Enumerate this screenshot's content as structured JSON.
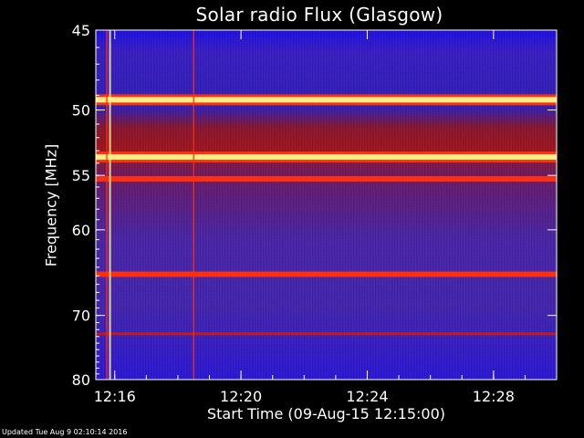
{
  "chart_data": {
    "type": "heatmap",
    "title": "Solar radio Flux (Glasgow)",
    "xlabel": "Start Time (09-Aug-15 12:15:00)",
    "ylabel": "Frequency [MHz]",
    "x_tick_labels": [
      "12:16",
      "12:20",
      "12:24",
      "12:28"
    ],
    "x_ticks_minutes": [
      16,
      20,
      24,
      28
    ],
    "x_range_minutes": [
      15.4,
      30.0
    ],
    "y_tick_labels": [
      "45",
      "50",
      "55",
      "60",
      "70",
      "80"
    ],
    "y_ticks_mhz": [
      45,
      50,
      55,
      60,
      70,
      80
    ],
    "y_range_mhz": [
      45,
      80
    ],
    "y_scale": "reciprocal",
    "colors": {
      "low": "#2a0fd8",
      "mid": "#5a2fa0",
      "band": "#c01a1a",
      "hot": "#ff3010",
      "saturated": "#ffee88",
      "background": "#000000",
      "text": "#ffffff"
    },
    "bands_mhz": [
      {
        "mhz": 49.3,
        "level": "saturated"
      },
      {
        "mhz": 53.5,
        "level": "saturated"
      },
      {
        "mhz": 55.3,
        "level": "hot"
      },
      {
        "mhz": 64.8,
        "level": "hot"
      },
      {
        "mhz": 72.6,
        "level": "band"
      }
    ],
    "vertical_lines_minutes": [
      15.75,
      15.85,
      18.5
    ]
  },
  "footer": "Updated Tue Aug  9 02:10:14 2016"
}
